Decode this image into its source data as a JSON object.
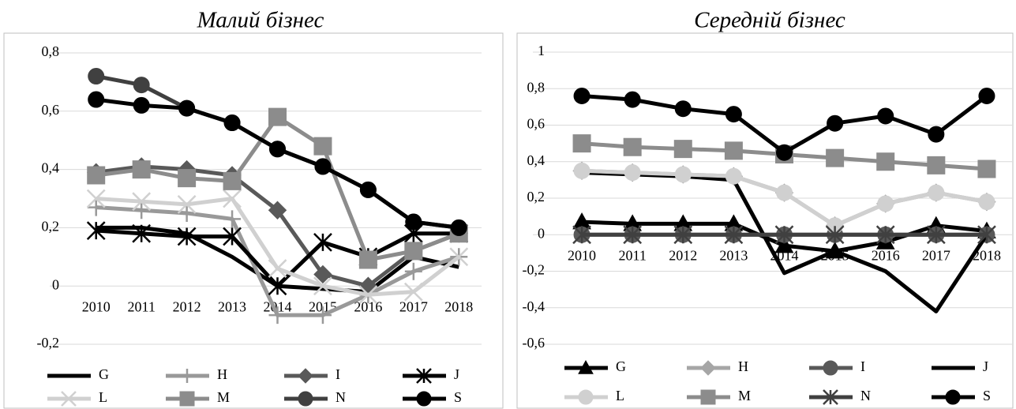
{
  "chart_data": [
    {
      "type": "line",
      "title": "Малий бізнес",
      "categories": [
        "2010",
        "2011",
        "2012",
        "2013",
        "2014",
        "2015",
        "2016",
        "2017",
        "2018"
      ],
      "ylim": [
        -0.2,
        0.8
      ],
      "yticks": [
        {
          "value": -0.2,
          "label": "-0,2"
        },
        0,
        {
          "value": 0.2,
          "label": "0,2"
        },
        {
          "value": 0.4,
          "label": "0,4"
        },
        {
          "value": 0.6,
          "label": "0,6"
        },
        {
          "value": 0.8,
          "label": "0,8"
        }
      ],
      "grid": true,
      "series": [
        {
          "name": "G",
          "color": "#000000",
          "marker": "none",
          "values": [
            0.2,
            0.2,
            0.18,
            0.1,
            0,
            -0.01,
            -0.02,
            0.1,
            0.065
          ]
        },
        {
          "name": "H",
          "color": "#999999",
          "marker": "plus",
          "values": [
            0.27,
            0.26,
            0.25,
            0.23,
            -0.1,
            -0.1,
            -0.03,
            0.05,
            0.1
          ]
        },
        {
          "name": "I",
          "color": "#595959",
          "marker": "diamond",
          "values": [
            0.39,
            0.41,
            0.4,
            0.38,
            0.26,
            0.04,
            0,
            0.12,
            0.18
          ]
        },
        {
          "name": "J",
          "color": "#000000",
          "marker": "asterisk",
          "values": [
            0.19,
            0.18,
            0.17,
            0.17,
            0,
            0.15,
            0.1,
            0.18,
            0.18
          ]
        },
        {
          "name": "L",
          "color": "#d0d0d0",
          "marker": "x",
          "values": [
            0.3,
            0.29,
            0.28,
            0.3,
            0.06,
            0,
            -0.03,
            -0.02,
            0.1
          ]
        },
        {
          "name": "M",
          "color": "#8c8c8c",
          "marker": "square",
          "values": [
            0.38,
            0.4,
            0.37,
            0.36,
            0.58,
            0.48,
            0.09,
            0.12,
            0.18
          ]
        },
        {
          "name": "N",
          "color": "#404040",
          "marker": "circle",
          "values": [
            0.72,
            0.69,
            0.61,
            0.56,
            0.47,
            0.41,
            0.33,
            0.22,
            0.2
          ]
        },
        {
          "name": "S",
          "color": "#000000",
          "marker": "circle",
          "values": [
            0.64,
            0.62,
            0.61,
            0.56,
            0.47,
            0.41,
            0.33,
            0.22,
            0.2
          ]
        }
      ]
    },
    {
      "type": "line",
      "title": "Середній бізнес",
      "categories": [
        "2010",
        "2011",
        "2012",
        "2013",
        "2014",
        "2015",
        "2016",
        "2017",
        "2018"
      ],
      "ylim": [
        -0.6,
        1
      ],
      "yticks": [
        {
          "value": -0.6,
          "label": "-0,6"
        },
        {
          "value": -0.4,
          "label": "-0,4"
        },
        {
          "value": -0.2,
          "label": "-0,2"
        },
        0,
        {
          "value": 0.2,
          "label": "0,2"
        },
        {
          "value": 0.4,
          "label": "0,4"
        },
        {
          "value": 0.6,
          "label": "0,6"
        },
        {
          "value": 0.8,
          "label": "0,8"
        },
        1
      ],
      "grid": true,
      "series": [
        {
          "name": "G",
          "color": "#000000",
          "marker": "triangle",
          "values": [
            0.07,
            0.06,
            0.06,
            0.06,
            -0.06,
            -0.09,
            -0.04,
            0.05,
            0.02
          ]
        },
        {
          "name": "H",
          "color": "#a6a6a6",
          "marker": "diamond",
          "values": [
            0.35,
            0.34,
            0.33,
            0.32,
            0.23,
            0.05,
            0.17,
            0.23,
            0.18
          ]
        },
        {
          "name": "I",
          "color": "#595959",
          "marker": "circle",
          "values": [
            0,
            0,
            0,
            0,
            0,
            0,
            0,
            0,
            0
          ]
        },
        {
          "name": "J",
          "color": "#000000",
          "marker": "none",
          "values": [
            0.34,
            0.33,
            0.32,
            0.3,
            -0.21,
            -0.09,
            -0.2,
            -0.42,
            0
          ]
        },
        {
          "name": "L",
          "color": "#d0d0d0",
          "marker": "circle",
          "values": [
            0.35,
            0.34,
            0.33,
            0.32,
            0.23,
            0.05,
            0.17,
            0.23,
            0.18
          ]
        },
        {
          "name": "M",
          "color": "#8c8c8c",
          "marker": "square",
          "values": [
            0.5,
            0.48,
            0.47,
            0.46,
            0.44,
            0.42,
            0.4,
            0.38,
            0.36
          ]
        },
        {
          "name": "N",
          "color": "#404040",
          "marker": "asterisk",
          "values": [
            0,
            0,
            0,
            0,
            0,
            0,
            0,
            0,
            0
          ]
        },
        {
          "name": "S",
          "color": "#000000",
          "marker": "circle",
          "values": [
            0.76,
            0.74,
            0.69,
            0.66,
            0.45,
            0.61,
            0.65,
            0.55,
            0.76
          ]
        }
      ]
    }
  ]
}
